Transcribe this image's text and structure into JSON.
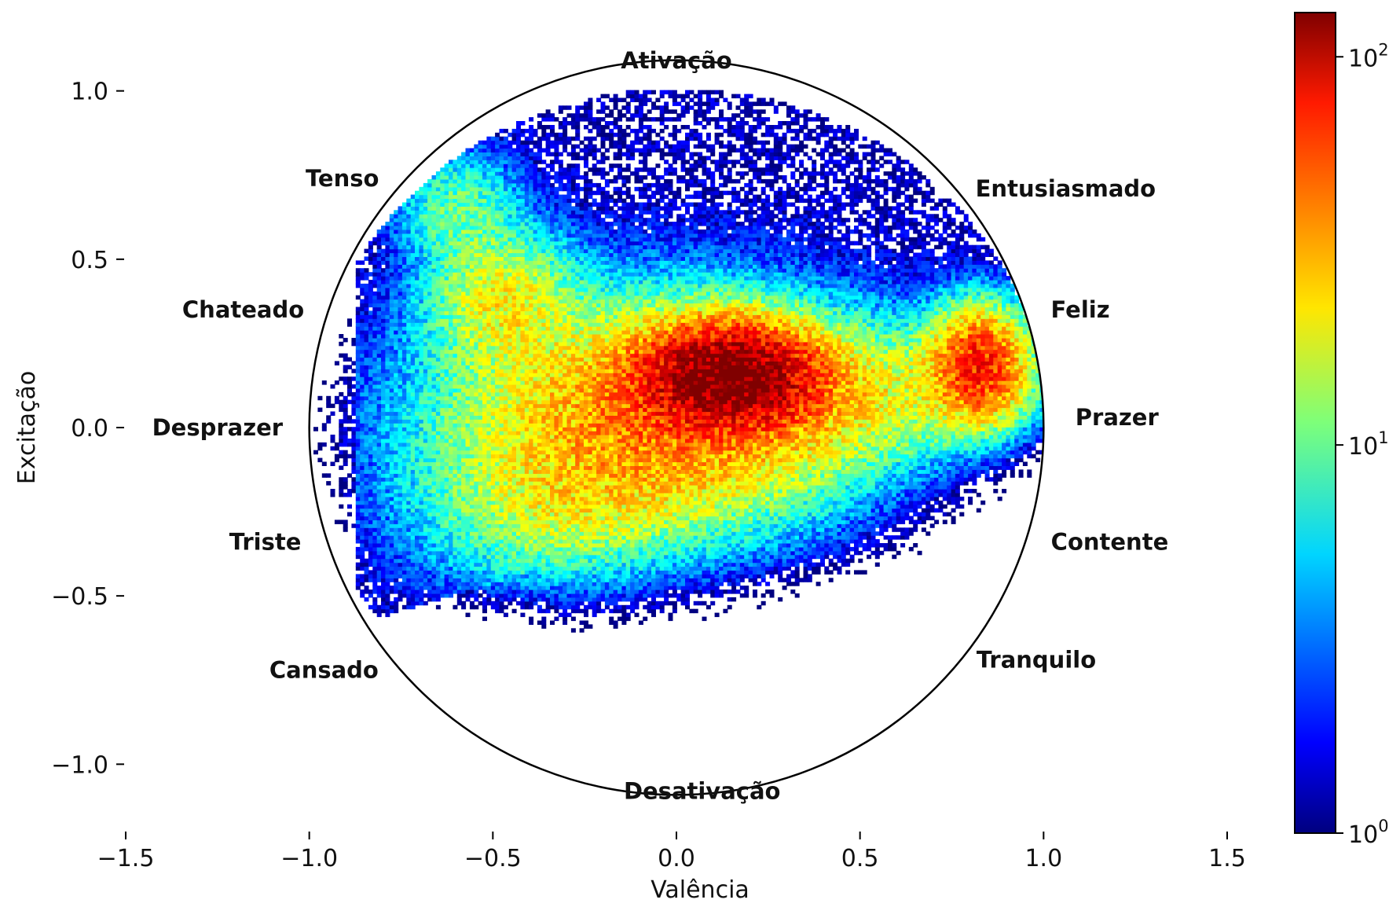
{
  "chart_data": {
    "type": "heatmap",
    "title": "",
    "xlabel": "Valência",
    "ylabel": "Excitação",
    "xlim": [
      -1.5,
      1.5
    ],
    "ylim": [
      -1.2,
      1.2
    ],
    "xticks": [
      -1.5,
      -1.0,
      -0.5,
      0.0,
      0.5,
      1.0,
      1.5
    ],
    "xtick_labels": [
      "−1.5",
      "−1.0",
      "−0.5",
      "0.0",
      "0.5",
      "1.0",
      "1.5"
    ],
    "yticks": [
      -1.0,
      -0.5,
      0.0,
      0.5,
      1.0
    ],
    "ytick_labels": [
      "−1.0",
      "−0.5",
      "0.0",
      "0.5",
      "1.0"
    ],
    "grid": false,
    "colormap": "jet",
    "color_scale": "log",
    "colorbar": {
      "range": [
        1,
        130
      ],
      "ticks": [
        1,
        10,
        100
      ],
      "tick_labels": [
        {
          "base": "10",
          "exp": "0"
        },
        {
          "base": "10",
          "exp": "1"
        },
        {
          "base": "10",
          "exp": "2"
        }
      ]
    },
    "circle": {
      "center": [
        0,
        0
      ],
      "radius": 1.0
    },
    "emotion_labels": [
      {
        "text": "Ativação",
        "x": 0.0,
        "y": 1.09
      },
      {
        "text": "Desativação",
        "x": 0.07,
        "y": -1.08
      },
      {
        "text": "Prazer",
        "x": 1.2,
        "y": 0.03
      },
      {
        "text": "Desprazer",
        "x": -1.25,
        "y": 0.0
      },
      {
        "text": "Tenso",
        "x": -0.91,
        "y": 0.74
      },
      {
        "text": "Chateado",
        "x": -1.18,
        "y": 0.35
      },
      {
        "text": "Triste",
        "x": -1.12,
        "y": -0.34
      },
      {
        "text": "Cansado",
        "x": -0.96,
        "y": -0.72
      },
      {
        "text": "Entusiasmado",
        "x": 1.06,
        "y": 0.71
      },
      {
        "text": "Feliz",
        "x": 1.1,
        "y": 0.35
      },
      {
        "text": "Contente",
        "x": 1.18,
        "y": -0.34
      },
      {
        "text": "Tranquilo",
        "x": 0.98,
        "y": -0.69
      }
    ],
    "density_clusters": [
      {
        "x": 0.14,
        "y": 0.15,
        "sx": 0.14,
        "sy": 0.09,
        "peak": 130
      },
      {
        "x": 0.82,
        "y": 0.18,
        "sx": 0.08,
        "sy": 0.1,
        "peak": 60
      },
      {
        "x": -0.05,
        "y": 0.02,
        "sx": 0.33,
        "sy": 0.2,
        "peak": 38
      },
      {
        "x": -0.48,
        "y": 0.38,
        "sx": 0.12,
        "sy": 0.12,
        "peak": 18
      },
      {
        "x": 0.5,
        "y": 0.1,
        "sx": 0.25,
        "sy": 0.12,
        "peak": 14
      },
      {
        "x": -0.6,
        "y": 0.65,
        "sx": 0.1,
        "sy": 0.1,
        "peak": 9
      },
      {
        "x": -0.35,
        "y": -0.25,
        "sx": 0.22,
        "sy": 0.14,
        "peak": 10
      }
    ]
  }
}
